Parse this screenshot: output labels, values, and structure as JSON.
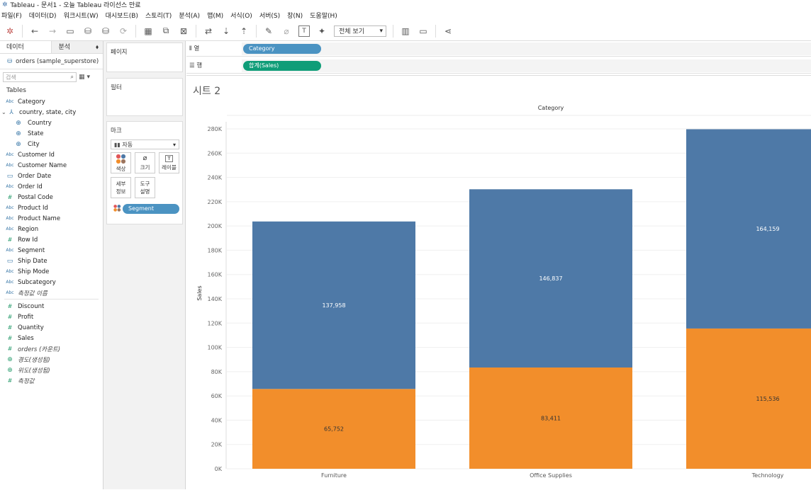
{
  "window": {
    "title": "Tableau - 문서1 - 오늘 Tableau 라이선스 만료"
  },
  "menu": [
    "파일(F)",
    "데이터(D)",
    "워크시트(W)",
    "대시보드(B)",
    "스토리(T)",
    "분석(A)",
    "맵(M)",
    "서식(O)",
    "서버(S)",
    "창(N)",
    "도움말(H)"
  ],
  "toolbar": {
    "view_select": "전체 보기"
  },
  "datapane": {
    "tab_data": "데이터",
    "tab_analysis": "분석",
    "source": "orders (sample_superstore)",
    "search_placeholder": "검색",
    "tables_header": "Tables"
  },
  "fields": [
    {
      "icon": "Abc",
      "label": "Category"
    },
    {
      "icon": "hier",
      "label": "country, state, city"
    },
    {
      "icon": "globe",
      "label": "Country",
      "indent": true
    },
    {
      "icon": "globe",
      "label": "State",
      "indent": true
    },
    {
      "icon": "globe",
      "label": "City",
      "indent": true
    },
    {
      "icon": "Abc",
      "label": "Customer Id"
    },
    {
      "icon": "Abc",
      "label": "Customer Name"
    },
    {
      "icon": "date",
      "label": "Order Date"
    },
    {
      "icon": "Abc",
      "label": "Order Id"
    },
    {
      "icon": "#",
      "label": "Postal Code"
    },
    {
      "icon": "Abc",
      "label": "Product Id"
    },
    {
      "icon": "Abc",
      "label": "Product Name"
    },
    {
      "icon": "Abc",
      "label": "Region"
    },
    {
      "icon": "#",
      "label": "Row Id"
    },
    {
      "icon": "Abc",
      "label": "Segment"
    },
    {
      "icon": "date",
      "label": "Ship Date"
    },
    {
      "icon": "Abc",
      "label": "Ship Mode"
    },
    {
      "icon": "Abc",
      "label": "Subcategory"
    },
    {
      "icon": "Abc",
      "label": "측정값 이름",
      "italic": true
    }
  ],
  "measures": [
    {
      "icon": "#",
      "label": "Discount"
    },
    {
      "icon": "#",
      "label": "Profit"
    },
    {
      "icon": "#",
      "label": "Quantity"
    },
    {
      "icon": "#",
      "label": "Sales"
    },
    {
      "icon": "#",
      "label": "orders (카운트)",
      "italic": true
    },
    {
      "icon": "globe",
      "label": "경도(생성됨)",
      "italic": true
    },
    {
      "icon": "globe",
      "label": "위도(생성됨)",
      "italic": true
    },
    {
      "icon": "#",
      "label": "측정값",
      "italic": true
    }
  ],
  "shelves": {
    "pages_title": "페이지",
    "filters_title": "필터",
    "marks_title": "마크",
    "marks_type": "자동",
    "btn_color": "색상",
    "btn_size": "크기",
    "btn_label": "레이블",
    "btn_detail": "세부\n정보",
    "btn_tooltip": "도구\n설명",
    "segment_pill": "Segment",
    "columns_label": "열",
    "rows_label": "행",
    "columns_pill": "Category",
    "rows_pill": "합계(Sales)"
  },
  "sheet": {
    "title": "시트 2"
  },
  "colors": {
    "blue": "#4e79a7",
    "orange": "#f28e2b",
    "pill_blue": "#4b93c2",
    "pill_green": "#0f9d78"
  },
  "chart_data": {
    "type": "bar",
    "stacked": true,
    "title": "Category",
    "xlabel": "",
    "ylabel": "Sales",
    "categories": [
      "Furniture",
      "Office Supplies",
      "Technology"
    ],
    "series": [
      {
        "color": "#f28e2b",
        "values": [
          65752,
          83411,
          115536
        ],
        "labels": [
          "65,752",
          "83,411",
          "115,536"
        ]
      },
      {
        "color": "#4e79a7",
        "values": [
          137958,
          146837,
          164159
        ],
        "labels": [
          "137,958",
          "146,837",
          "164,159"
        ]
      }
    ],
    "ylim": [
      0,
      280000
    ],
    "yticks": [
      "0K",
      "20K",
      "40K",
      "60K",
      "80K",
      "100K",
      "120K",
      "140K",
      "160K",
      "180K",
      "200K",
      "220K",
      "240K",
      "260K",
      "280K"
    ],
    "grid": true
  }
}
